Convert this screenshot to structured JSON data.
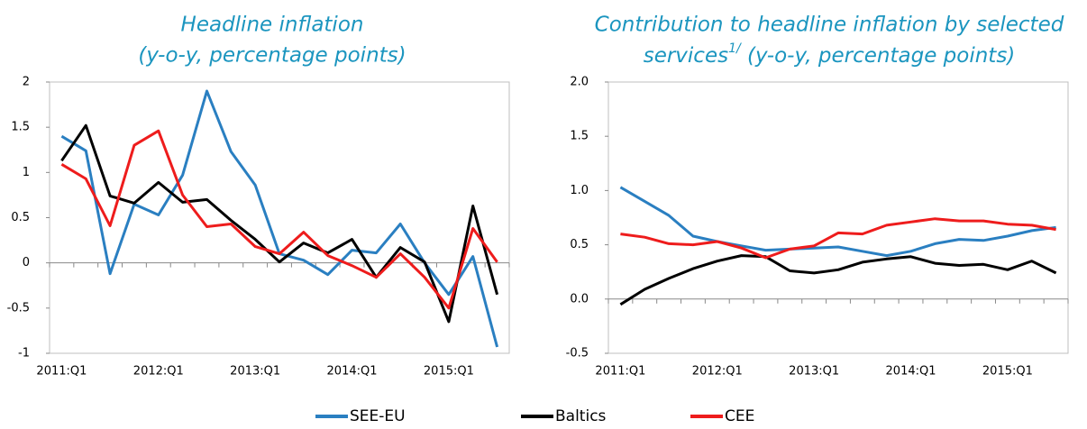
{
  "chart_data": [
    {
      "type": "line",
      "title": "Headline inflation",
      "subtitle": "(y-o-y, percentage points)",
      "categories": [
        "2011:Q1",
        null,
        null,
        null,
        "2012:Q1",
        null,
        null,
        null,
        "2013:Q1",
        null,
        null,
        null,
        "2014:Q1",
        null,
        null,
        null,
        "2015:Q1",
        null,
        null
      ],
      "ylim": [
        -1,
        2
      ],
      "yticks": [
        -1,
        -0.5,
        0,
        0.5,
        1,
        1.5,
        2
      ],
      "series": [
        {
          "name": "SEE-EU",
          "color": "#2a7fc1",
          "values": [
            1.4,
            1.24,
            -0.12,
            0.65,
            0.53,
            0.97,
            1.9,
            1.23,
            0.86,
            0.1,
            0.03,
            -0.13,
            0.14,
            0.11,
            0.43,
            0.0,
            -0.35,
            0.07,
            -0.93
          ]
        },
        {
          "name": "Baltics",
          "color": "#000000",
          "values": [
            1.13,
            1.52,
            0.74,
            0.66,
            0.89,
            0.67,
            0.7,
            0.47,
            0.26,
            0.01,
            0.22,
            0.11,
            0.26,
            -0.16,
            0.17,
            0.01,
            -0.65,
            0.63,
            -0.35
          ]
        },
        {
          "name": "CEE",
          "color": "#ee1c1c",
          "values": [
            1.09,
            0.93,
            0.41,
            1.3,
            1.46,
            0.75,
            0.4,
            0.43,
            0.18,
            0.1,
            0.34,
            0.08,
            -0.03,
            -0.16,
            0.1,
            -0.16,
            -0.5,
            0.38,
            0.01
          ]
        }
      ]
    },
    {
      "type": "line",
      "title_lines": [
        "Contribution to headline inflation by selected",
        "services"
      ],
      "title_superscript": "1/",
      "subtitle": "(y-o-y, percentage points)",
      "categories": [
        "2011:Q1",
        null,
        null,
        null,
        "2012:Q1",
        null,
        null,
        null,
        "2013:Q1",
        null,
        null,
        null,
        "2014:Q1",
        null,
        null,
        null,
        "2015:Q1",
        null,
        null
      ],
      "ylim": [
        -0.5,
        2
      ],
      "yticks": [
        -0.5,
        {
          "value": 0,
          "label": "0.0"
        },
        0.5,
        {
          "value": 1,
          "label": "1.0"
        },
        1.5,
        {
          "value": 2,
          "label": "2.0"
        }
      ],
      "series": [
        {
          "color": "#2a7fc1",
          "values": [
            1.03,
            0.9,
            0.77,
            0.58,
            0.53,
            0.49,
            0.45,
            0.46,
            0.47,
            0.48,
            0.44,
            0.4,
            0.44,
            0.51,
            0.55,
            0.54,
            0.58,
            0.63,
            0.66
          ]
        },
        {
          "color": "#000000",
          "values": [
            -0.05,
            0.09,
            0.19,
            0.28,
            0.35,
            0.4,
            0.39,
            0.26,
            0.24,
            0.27,
            0.34,
            0.37,
            0.39,
            0.33,
            0.31,
            0.32,
            0.27,
            0.35,
            0.24
          ]
        },
        {
          "color": "#ee1c1c",
          "values": [
            0.6,
            0.57,
            0.51,
            0.5,
            0.53,
            0.47,
            0.38,
            0.46,
            0.49,
            0.61,
            0.6,
            0.68,
            0.71,
            0.74,
            0.72,
            0.72,
            0.69,
            0.68,
            0.64
          ]
        }
      ]
    }
  ]
}
